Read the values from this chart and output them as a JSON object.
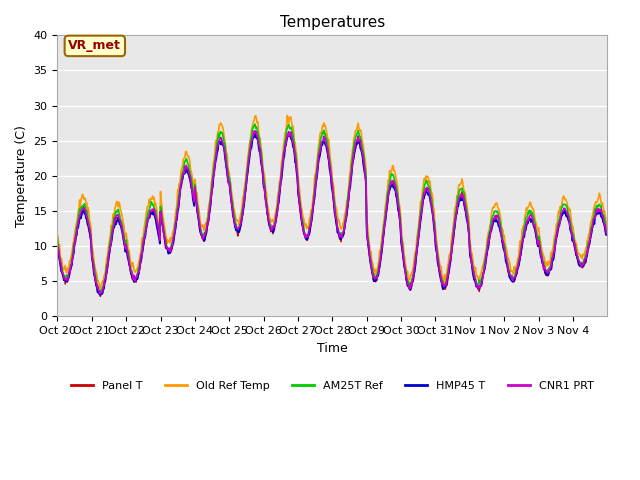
{
  "title": "Temperatures",
  "xlabel": "Time",
  "ylabel": "Temperature (C)",
  "ylim": [
    0,
    40
  ],
  "bg_color": "#e8e8e8",
  "fig_bg": "#ffffff",
  "annotation_text": "VR_met",
  "annotation_bg": "#ffffcc",
  "annotation_edge": "#996600",
  "annotation_text_color": "#990000",
  "series_colors": [
    "#cc0000",
    "#ff9900",
    "#00cc00",
    "#0000cc",
    "#cc00cc"
  ],
  "series_labels": [
    "Panel T",
    "Old Ref Temp",
    "AM25T Ref",
    "HMP45 T",
    "CNR1 PRT"
  ],
  "series_lw": [
    1.0,
    1.2,
    1.2,
    1.2,
    1.2
  ],
  "tick_labels": [
    "Oct 20",
    "Oct 21",
    "Oct 22",
    "Oct 23",
    "Oct 24",
    "Oct 25",
    "Oct 26",
    "Oct 27",
    "Oct 28",
    "Oct 29",
    "Oct 30",
    "Oct 31",
    "Nov 1",
    "Nov 2",
    "Nov 3",
    "Nov 4"
  ],
  "n_days": 16,
  "pts_per_day": 48,
  "grid_color": "#ffffff",
  "font_family": "DejaVu Sans",
  "amp_pattern": [
    10,
    11,
    10,
    12,
    14,
    14,
    14,
    14,
    14,
    14,
    14,
    13,
    10,
    9,
    9,
    8
  ],
  "min_pattern": [
    5,
    3,
    5,
    9,
    11,
    12,
    12,
    11,
    11,
    5,
    4,
    4,
    4,
    5,
    6,
    7
  ]
}
